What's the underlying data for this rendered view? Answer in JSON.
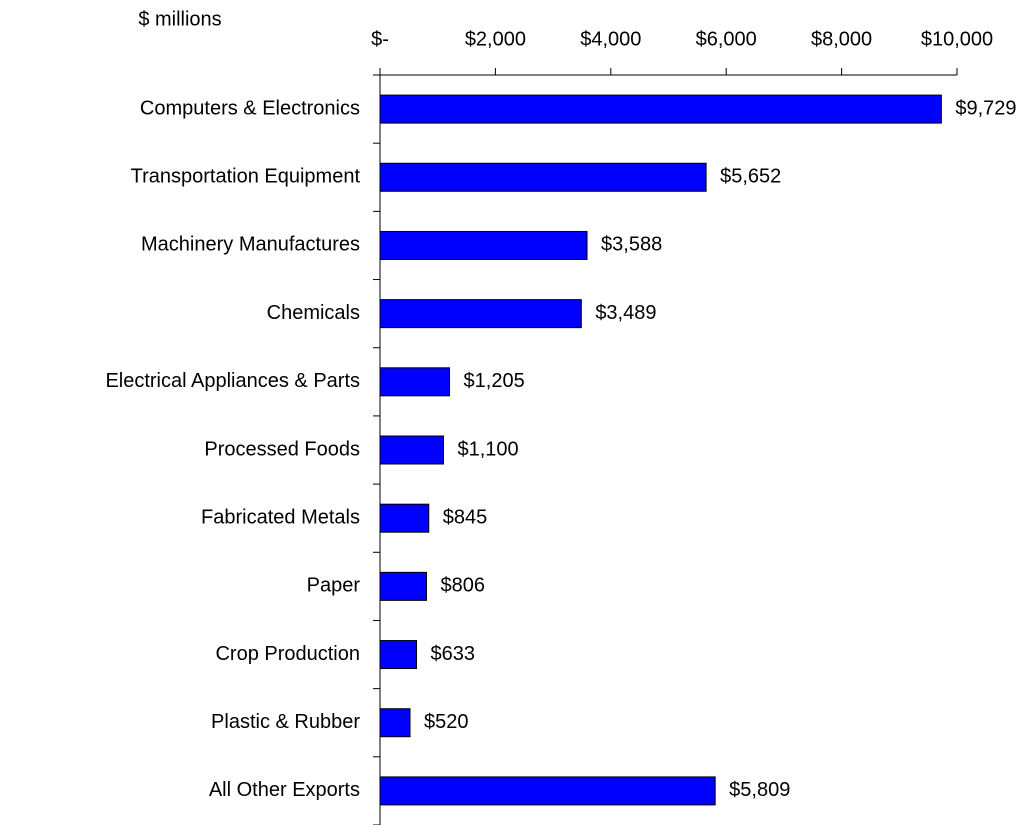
{
  "chart_data": {
    "type": "bar",
    "orientation": "horizontal",
    "xlabel": "$ millions",
    "categories": [
      "Computers & Electronics",
      "Transportation Equipment",
      "Machinery Manufactures",
      "Chemicals",
      "Electrical Appliances & Parts",
      "Processed Foods",
      "Fabricated Metals",
      "Paper",
      "Crop Production",
      "Plastic & Rubber",
      "All Other Exports"
    ],
    "values": [
      9729,
      5652,
      3588,
      3489,
      1205,
      1100,
      845,
      806,
      633,
      520,
      5809
    ],
    "value_labels": [
      "$9,729",
      "$5,652",
      "$3,588",
      "$3,489",
      "$1,205",
      "$1,100",
      "$845",
      "$806",
      "$633",
      "$520",
      "$5,809"
    ],
    "color": "#0000ff",
    "xlim": [
      0,
      10000
    ],
    "xticks": [
      {
        "value": 0,
        "label": "$-"
      },
      {
        "value": 2000,
        "label": "$2,000"
      },
      {
        "value": 4000,
        "label": "$4,000"
      },
      {
        "value": 6000,
        "label": "$6,000"
      },
      {
        "value": 8000,
        "label": "$8,000"
      },
      {
        "value": 10000,
        "label": "$10,000"
      }
    ],
    "grid": false
  }
}
